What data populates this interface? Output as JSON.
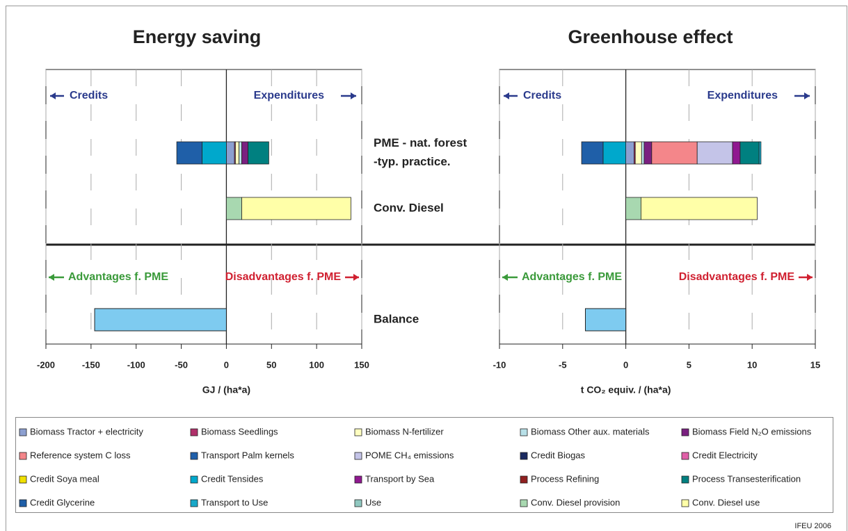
{
  "rows": [
    [
      "PME - nat. forest",
      "-typ. practice."
    ],
    [
      "Conv. Diesel"
    ],
    [
      "Balance"
    ]
  ],
  "legend": [
    {
      "name": "Biomass Tractor + electricity",
      "color": "#8c9fd0"
    },
    {
      "name": "Biomass Seedlings",
      "color": "#b0306a"
    },
    {
      "name": "Biomass N-fertilizer",
      "color": "#ffffc0"
    },
    {
      "name": "Biomass Other aux. materials",
      "color": "#b8e0e8"
    },
    {
      "name": "Biomass Field N₂O emissions",
      "color": "#7a2080"
    },
    {
      "name": "Reference system C loss",
      "color": "#f4868a"
    },
    {
      "name": "Transport Palm kernels",
      "color": "#1f5faa"
    },
    {
      "name": "POME CH₄ emissions",
      "color": "#c4c4e8"
    },
    {
      "name": "Credit Biogas",
      "color": "#1a2a60"
    },
    {
      "name": "Credit Electricity",
      "color": "#e060a8"
    },
    {
      "name": "Credit Soya meal",
      "color": "#f0e000"
    },
    {
      "name": "Credit Tensides",
      "color": "#00a8cc"
    },
    {
      "name": "Transport by Sea",
      "color": "#901890"
    },
    {
      "name": "Process Refining",
      "color": "#902020"
    },
    {
      "name": "Process Transesterification",
      "color": "#008080"
    },
    {
      "name": "Credit Glycerine",
      "color": "#1f5fa8"
    },
    {
      "name": "Transport to Use",
      "color": "#18a8c8"
    },
    {
      "name": "Use",
      "color": "#90c8c0"
    },
    {
      "name": "Conv. Diesel provision",
      "color": "#a8d8b0"
    },
    {
      "name": "Conv. Diesel use",
      "color": "#ffffa8"
    }
  ],
  "balance_color": "#7ecbf0",
  "source": "IFEU 2006",
  "chart_data": [
    {
      "type": "bar",
      "title": "Energy saving",
      "xlabel": "GJ / (ha*a)",
      "xlim": [
        -200,
        150
      ],
      "xticks": [
        -200,
        -150,
        -100,
        -50,
        0,
        50,
        100,
        150
      ],
      "annotations": {
        "credits": "Credits",
        "expenditures": "Expenditures",
        "advantages": "Advantages f. PME",
        "disadvantages": "Disadvantages f. PME"
      },
      "segments": [
        [
          9,
          null
        ],
        [
          1,
          null
        ],
        [
          4,
          null
        ],
        [
          3,
          null
        ],
        [
          7,
          null
        ],
        [
          null,
          null
        ],
        [
          null,
          null
        ],
        [
          null,
          null
        ],
        [
          null,
          null
        ],
        [
          null,
          null
        ],
        [
          null,
          null
        ],
        [
          -27,
          null
        ],
        [
          null,
          null
        ],
        [
          null,
          null
        ],
        [
          23,
          null
        ],
        [
          -28,
          null
        ],
        [
          null,
          null
        ],
        [
          null,
          null
        ],
        [
          null,
          17
        ],
        [
          null,
          121
        ]
      ],
      "balance": -146
    },
    {
      "type": "bar",
      "title": "Greenhouse effect",
      "xlabel": "t CO₂ equiv. / (ha*a)",
      "xlim": [
        -10,
        15
      ],
      "xticks": [
        -10,
        -5,
        0,
        5,
        10,
        15
      ],
      "annotations": {
        "credits": "Credits",
        "expenditures": "Expenditures",
        "advantages": "Advantages f. PME",
        "disadvantages": "Disadvantages f. PME"
      },
      "segments": [
        [
          0.65,
          null
        ],
        [
          0.1,
          null
        ],
        [
          0.5,
          null
        ],
        [
          0.2,
          null
        ],
        [
          0.6,
          null
        ],
        [
          3.6,
          null
        ],
        [
          null,
          null
        ],
        [
          2.8,
          null
        ],
        [
          null,
          null
        ],
        [
          null,
          null
        ],
        [
          null,
          null
        ],
        [
          -1.8,
          null
        ],
        [
          0.6,
          null
        ],
        [
          null,
          null
        ],
        [
          1.5,
          null
        ],
        [
          -1.7,
          null
        ],
        [
          0.15,
          null
        ],
        [
          null,
          null
        ],
        [
          null,
          1.2
        ],
        [
          null,
          9.2
        ]
      ],
      "balance": -3.2
    }
  ]
}
